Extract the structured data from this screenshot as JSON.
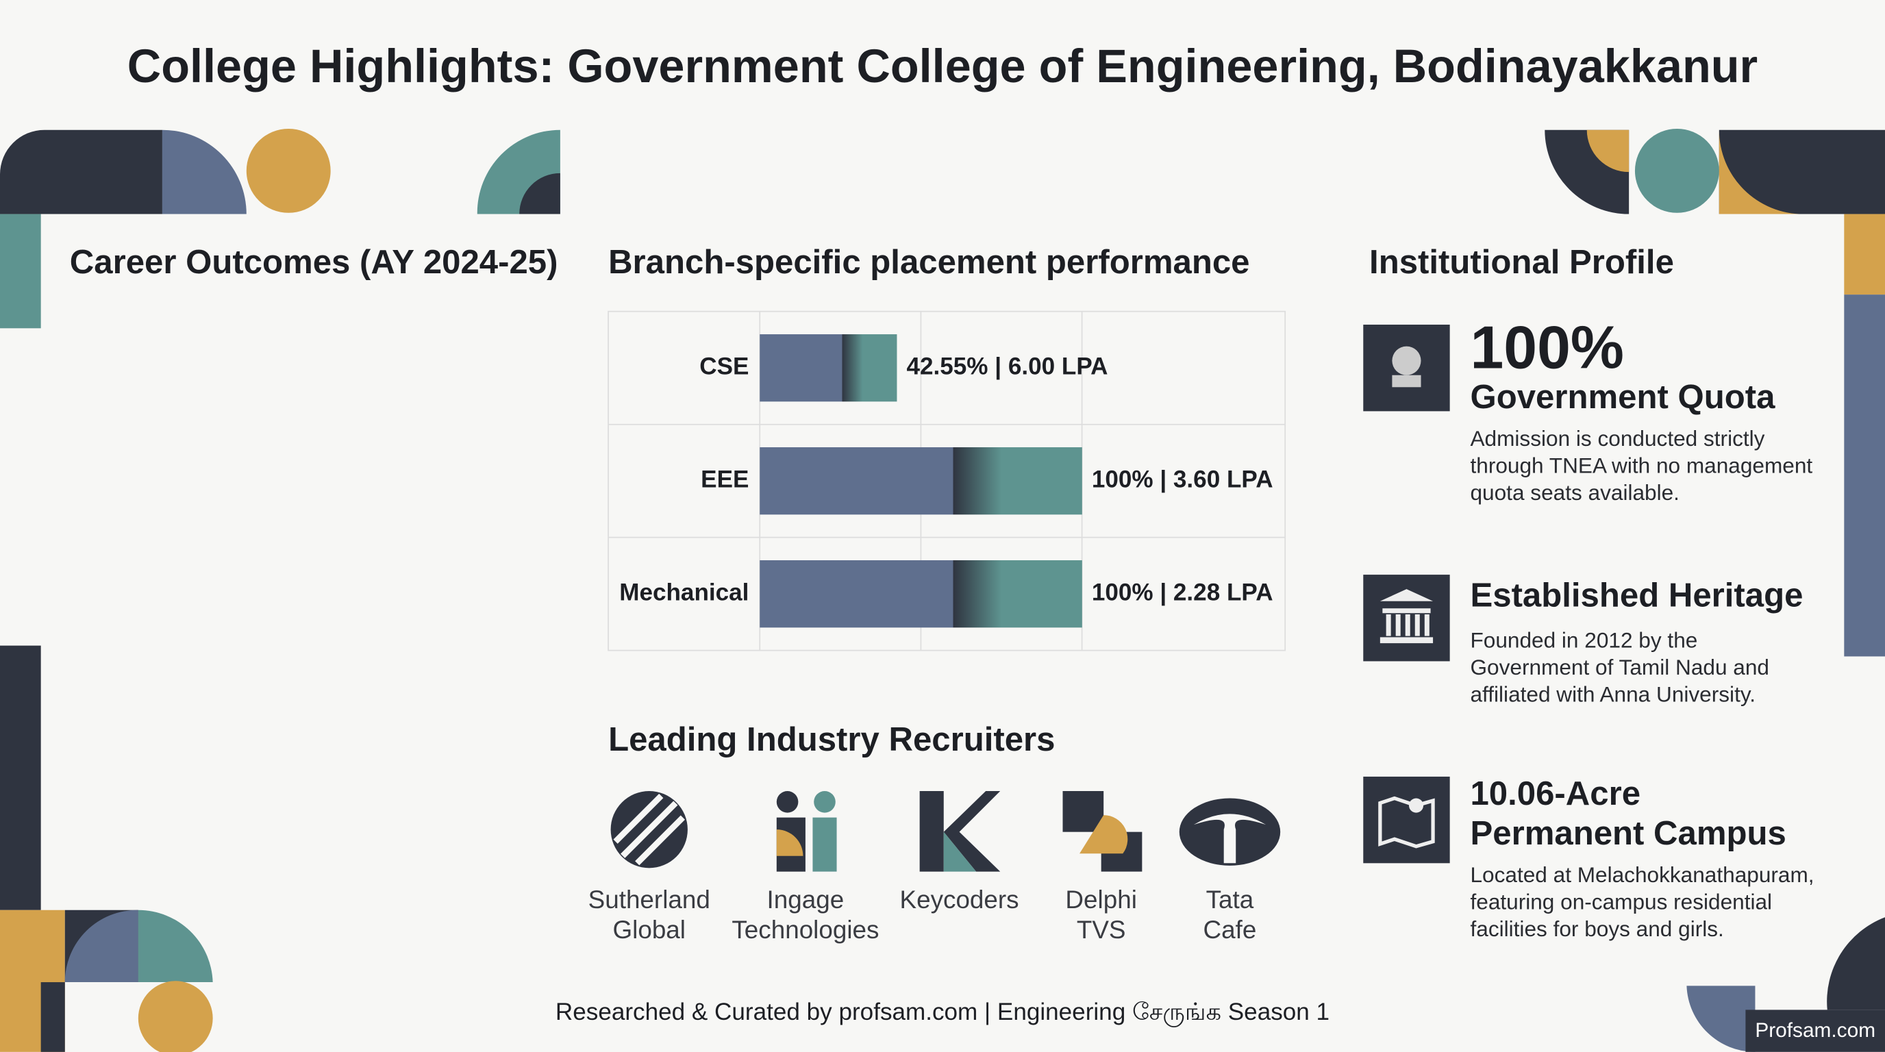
{
  "header": {
    "title": "College Highlights: Government College of Engineering, Bodinayakkanur"
  },
  "career": {
    "title": "Career Outcomes (AY 2024-25)"
  },
  "chart_data": {
    "type": "bar",
    "orientation": "horizontal",
    "title": "Branch-specific placement performance",
    "categories": [
      "CSE",
      "EEE",
      "Mechanical"
    ],
    "values": [
      42.55,
      100,
      100
    ],
    "value_labels": [
      "42.55% | 6.00 LPA",
      "100% | 3.60 LPA",
      "100% | 2.28 LPA"
    ],
    "xlim": [
      0,
      160
    ],
    "colors": [
      "#5f6f8e",
      "#5e9490"
    ]
  },
  "recruiters": {
    "title": "Leading Industry Recruiters",
    "items": [
      {
        "name": [
          "Sutherland",
          "Global"
        ]
      },
      {
        "name": [
          "Ingage",
          "Technologies"
        ]
      },
      {
        "name": [
          "Keycoders"
        ]
      },
      {
        "name": [
          "Delphi",
          "TVS"
        ]
      },
      {
        "name": [
          "Tata",
          "Cafe"
        ]
      }
    ]
  },
  "profile": {
    "title": "Institutional Profile",
    "items": [
      {
        "stat": "100%",
        "title": [
          "Government Quota"
        ],
        "description": [
          "Admission is conducted strictly",
          "through TNEA with no management",
          "quota seats available."
        ]
      },
      {
        "title": [
          "Established Heritage"
        ],
        "description": [
          "Founded in 2012 by the",
          "Government of Tamil Nadu and",
          "affiliated with Anna University."
        ]
      },
      {
        "title": [
          "10.06-Acre",
          "Permanent Campus"
        ],
        "description": [
          "Located at Melachokkanathapuram,",
          "featuring on-campus residential",
          "facilities for boys and girls."
        ]
      }
    ]
  },
  "footer": {
    "text": "Researched & Curated by profsam.com | Engineering சேருங்க Season 1",
    "watermark": "Profsam.com"
  }
}
